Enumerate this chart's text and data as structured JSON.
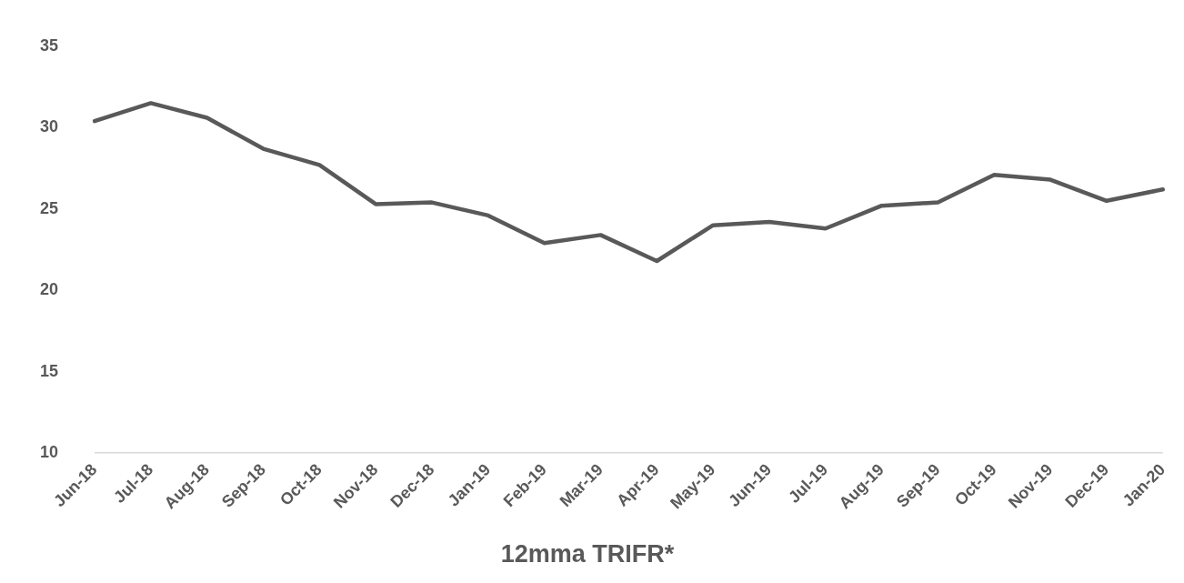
{
  "chart_data": {
    "type": "line",
    "title": "12mma TRIFR*",
    "categories": [
      "Jun-18",
      "Jul-18",
      "Aug-18",
      "Sep-18",
      "Oct-18",
      "Nov-18",
      "Dec-18",
      "Jan-19",
      "Feb-19",
      "Mar-19",
      "Apr-19",
      "May-19",
      "Jun-19",
      "Jul-19",
      "Aug-19",
      "Sep-19",
      "Oct-19",
      "Nov-19",
      "Dec-19",
      "Jan-20"
    ],
    "series": [
      {
        "color": "#595959",
        "values": [
          30.4,
          31.5,
          30.6,
          28.7,
          27.7,
          25.3,
          25.4,
          24.6,
          22.9,
          23.4,
          21.8,
          24.0,
          24.2,
          23.8,
          25.2,
          25.4,
          27.1,
          26.8,
          25.5,
          26.2
        ]
      }
    ],
    "ylim": [
      10,
      35
    ],
    "yticks": [
      10,
      15,
      20,
      25,
      30,
      35
    ],
    "grid": false,
    "legend": false,
    "marker": "none",
    "line_style": "solid"
  }
}
